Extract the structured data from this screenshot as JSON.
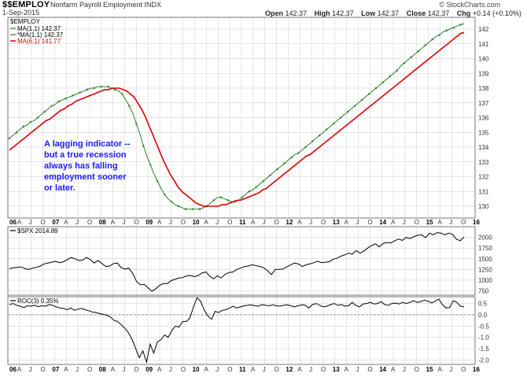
{
  "header": {
    "symbol": "$$EMPLOY",
    "name": "Nonfarm Payroll Employment  INDX",
    "date": "1-Sep-2015",
    "brand": "© StockCharts.com",
    "quote": [
      {
        "label": "Open",
        "value": "142.37"
      },
      {
        "label": "High",
        "value": "142.37"
      },
      {
        "label": "Low",
        "value": "142.37"
      },
      {
        "label": "Close",
        "value": "142.37"
      },
      {
        "label": "Chg",
        "value": "+0.14 (+0.10%)"
      }
    ]
  },
  "colors": {
    "price": "#2e7d2e",
    "ma6": "#dd0000",
    "line": "#000000",
    "grid": "#cccccc",
    "annotation": "#1a1aff"
  },
  "annotation": {
    "lines": [
      "A lagging indicator --",
      "but a true recession",
      "always has falling",
      "employment sooner",
      "or later."
    ]
  },
  "x_axis": {
    "months": [
      "A",
      "J",
      "O",
      "07",
      "A",
      "J",
      "O",
      "08",
      "A",
      "J",
      "O",
      "09",
      "A",
      "J",
      "O",
      "10",
      "A",
      "J",
      "O",
      "11",
      "A",
      "J",
      "O",
      "12",
      "A",
      "J",
      "O",
      "13",
      "A",
      "J",
      "O",
      "14",
      "A",
      "J",
      "O",
      "15",
      "A",
      "J",
      "O",
      "16"
    ],
    "first_label": "06"
  },
  "chart_data": [
    {
      "type": "line",
      "panel": "main",
      "legend": [
        "$EMPLOY",
        "MA(1,1) 142.37",
        "*MA(1,1) 142.37",
        "MA(6,1) 141.77"
      ],
      "x_start": "2006-01",
      "x_end": "2016-01",
      "ylim": [
        129.2,
        142.8
      ],
      "yticks": [
        130,
        131,
        132,
        133,
        134,
        135,
        136,
        137,
        138,
        139,
        140,
        141,
        142
      ],
      "series": [
        {
          "name": "MA(1,1) 142.37",
          "color": "#2e7d2e",
          "values": [
            134.6,
            134.8,
            135.0,
            135.2,
            135.4,
            135.5,
            135.7,
            135.8,
            136.0,
            136.2,
            136.4,
            136.6,
            136.8,
            136.9,
            137.1,
            137.2,
            137.3,
            137.4,
            137.5,
            137.6,
            137.7,
            137.8,
            137.9,
            138.0,
            138.0,
            138.1,
            138.1,
            138.1,
            138.1,
            138.0,
            137.9,
            137.8,
            137.6,
            137.2,
            136.8,
            136.3,
            135.6,
            134.9,
            134.1,
            133.4,
            132.8,
            132.2,
            131.7,
            131.2,
            130.8,
            130.5,
            130.3,
            130.1,
            130.0,
            129.9,
            129.8,
            129.8,
            129.8,
            129.8,
            129.8,
            129.9,
            130.0,
            130.2,
            130.4,
            130.6,
            130.6,
            130.5,
            130.4,
            130.3,
            130.3,
            130.4,
            130.6,
            130.8,
            131.0,
            131.1,
            131.3,
            131.5,
            131.7,
            131.9,
            132.1,
            132.3,
            132.5,
            132.7,
            132.9,
            133.1,
            133.3,
            133.5,
            133.6,
            133.8,
            134.0,
            134.2,
            134.4,
            134.6,
            134.8,
            135.0,
            135.2,
            135.4,
            135.6,
            135.8,
            136.0,
            136.2,
            136.4,
            136.6,
            136.8,
            137.0,
            137.2,
            137.4,
            137.6,
            137.8,
            138.0,
            138.2,
            138.4,
            138.6,
            138.8,
            139.0,
            139.2,
            139.5,
            139.7,
            139.9,
            140.1,
            140.3,
            140.5,
            140.7,
            140.9,
            141.1,
            141.3,
            141.5,
            141.6,
            141.8,
            141.9,
            142.0,
            142.1,
            142.2,
            142.3,
            142.37
          ]
        },
        {
          "name": "MA(6,1) 141.77",
          "color": "#dd0000",
          "values": [
            133.8,
            134.0,
            134.2,
            134.4,
            134.6,
            134.8,
            135.0,
            135.2,
            135.4,
            135.6,
            135.8,
            135.9,
            136.1,
            136.3,
            136.5,
            136.6,
            136.8,
            136.9,
            137.1,
            137.2,
            137.3,
            137.4,
            137.5,
            137.6,
            137.7,
            137.8,
            137.9,
            137.9,
            138.0,
            138.0,
            138.0,
            137.9,
            137.8,
            137.6,
            137.4,
            137.0,
            136.6,
            136.1,
            135.5,
            134.9,
            134.3,
            133.7,
            133.1,
            132.6,
            132.1,
            131.7,
            131.3,
            131.0,
            130.8,
            130.6,
            130.4,
            130.2,
            130.1,
            130.0,
            130.0,
            130.0,
            130.0,
            130.0,
            130.1,
            130.1,
            130.2,
            130.3,
            130.4,
            130.4,
            130.5,
            130.6,
            130.7,
            130.8,
            130.9,
            131.1,
            131.2,
            131.4,
            131.6,
            131.8,
            132.0,
            132.2,
            132.4,
            132.6,
            132.8,
            133.0,
            133.2,
            133.4,
            133.5,
            133.7,
            133.9,
            134.1,
            134.3,
            134.5,
            134.7,
            134.9,
            135.1,
            135.3,
            135.5,
            135.7,
            135.9,
            136.1,
            136.3,
            136.5,
            136.7,
            136.9,
            137.1,
            137.3,
            137.5,
            137.7,
            137.9,
            138.1,
            138.3,
            138.5,
            138.7,
            138.9,
            139.1,
            139.3,
            139.5,
            139.7,
            139.9,
            140.1,
            140.3,
            140.5,
            140.7,
            140.9,
            141.1,
            141.3,
            141.5,
            141.7,
            141.77
          ]
        }
      ]
    },
    {
      "type": "line",
      "panel": "spx",
      "legend": [
        "$SPX 2014.89"
      ],
      "x_start": "2006-01",
      "x_end": "2016-01",
      "ylim": [
        650,
        2250
      ],
      "yticks": [
        750,
        1000,
        1250,
        1500,
        1750,
        2000
      ],
      "series": [
        {
          "name": "$SPX 2014.89",
          "color": "#000000",
          "values": [
            1270,
            1290,
            1300,
            1310,
            1270,
            1250,
            1280,
            1300,
            1330,
            1380,
            1400,
            1420,
            1440,
            1410,
            1430,
            1480,
            1530,
            1500,
            1460,
            1470,
            1530,
            1480,
            1400,
            1460,
            1390,
            1320,
            1330,
            1390,
            1400,
            1290,
            1260,
            1280,
            1160,
            970,
            890,
            900,
            820,
            740,
            800,
            880,
            920,
            920,
            990,
            1020,
            1050,
            1060,
            1100,
            1110,
            1080,
            1110,
            1170,
            1190,
            1090,
            1030,
            1100,
            1050,
            1140,
            1180,
            1190,
            1250,
            1280,
            1320,
            1330,
            1360,
            1340,
            1320,
            1290,
            1220,
            1130,
            1250,
            1250,
            1260,
            1310,
            1360,
            1400,
            1380,
            1320,
            1360,
            1380,
            1410,
            1440,
            1410,
            1420,
            1430,
            1490,
            1510,
            1560,
            1590,
            1630,
            1610,
            1690,
            1630,
            1680,
            1750,
            1810,
            1850,
            1780,
            1860,
            1880,
            1870,
            1920,
            1960,
            1930,
            2000,
            1970,
            2020,
            2050,
            2060,
            1990,
            2100,
            2060,
            2110,
            2100,
            2060,
            2100,
            2070,
            1960,
            1920,
            2010
          ],
          "end_label": "2014.89"
        }
      ]
    },
    {
      "type": "line",
      "panel": "roc",
      "legend": [
        "ROC(3) 0.35%"
      ],
      "x_start": "2006-01",
      "x_end": "2016-01",
      "ylim": [
        -2.2,
        0.8
      ],
      "yticks": [
        -2.0,
        -1.5,
        -1.0,
        -0.5,
        0.0,
        0.5
      ],
      "zero_line": 0.0,
      "series": [
        {
          "name": "ROC(3) 0.35%",
          "color": "#000000",
          "values": [
            0.45,
            0.5,
            0.42,
            0.38,
            0.32,
            0.4,
            0.38,
            0.42,
            0.36,
            0.4,
            0.38,
            0.45,
            0.42,
            0.35,
            0.3,
            0.28,
            0.22,
            0.3,
            0.2,
            0.25,
            0.28,
            0.22,
            0.18,
            0.12,
            0.1,
            0.05,
            0.02,
            -0.02,
            -0.1,
            -0.25,
            -0.3,
            -0.45,
            -0.6,
            -0.8,
            -1.1,
            -1.5,
            -1.9,
            -1.6,
            -2.1,
            -1.3,
            -1.7,
            -1.2,
            -1.1,
            -0.9,
            -1.0,
            -0.7,
            -0.5,
            -0.55,
            -0.3,
            -0.3,
            -0.15,
            0.35,
            0.75,
            0.6,
            0.2,
            -0.05,
            -0.2,
            0.15,
            0.1,
            0.2,
            0.22,
            0.3,
            0.38,
            0.3,
            0.35,
            0.4,
            0.42,
            0.44,
            0.4,
            0.38,
            0.45,
            0.42,
            0.4,
            0.44,
            0.4,
            0.38,
            0.42,
            0.44,
            0.4,
            0.35,
            0.4,
            0.44,
            0.42,
            0.3,
            0.45,
            0.5,
            0.42,
            0.35,
            0.38,
            0.45,
            0.5,
            0.42,
            0.45,
            0.38,
            0.4,
            0.55,
            0.42,
            0.35,
            0.48,
            0.5,
            0.55,
            0.48,
            0.5,
            0.58,
            0.45,
            0.42,
            0.5,
            0.52,
            0.48,
            0.55,
            0.5,
            0.55,
            0.62,
            0.55,
            0.58,
            0.65,
            0.6,
            0.52,
            0.6,
            0.7,
            0.45,
            0.3,
            0.32,
            0.62,
            0.55,
            0.38,
            0.35
          ],
          "end_label": "0.35%"
        }
      ]
    }
  ]
}
